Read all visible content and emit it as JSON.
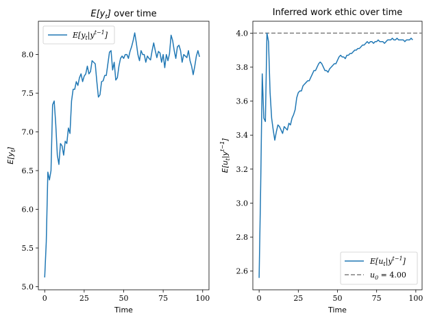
{
  "colors": {
    "series": "#1f77b4",
    "reference": "#7f7f7f",
    "frame": "#000000",
    "legend_border": "#cccccc"
  },
  "chart_data": [
    {
      "type": "line",
      "title": "E[y_t] over time",
      "xlabel": "Time",
      "ylabel": "E[y_t]",
      "xlim": [
        -4,
        104
      ],
      "ylim": [
        4.96,
        8.43
      ],
      "xticks": [
        0,
        25,
        50,
        75,
        100
      ],
      "yticks": [
        5.0,
        5.5,
        6.0,
        6.5,
        7.0,
        7.5,
        8.0
      ],
      "ytick_labels": [
        "5.0",
        "5.5",
        "6.0",
        "6.5",
        "7.0",
        "7.5",
        "8.0"
      ],
      "grid": false,
      "legend_position": "top-left",
      "series": [
        {
          "name": "E[y_t | y^{t-1}]",
          "x": [
            0,
            1,
            2,
            3,
            4,
            5,
            6,
            7,
            8,
            9,
            10,
            11,
            12,
            13,
            14,
            15,
            16,
            17,
            18,
            19,
            20,
            21,
            22,
            23,
            24,
            25,
            26,
            27,
            28,
            29,
            30,
            31,
            32,
            33,
            34,
            35,
            36,
            37,
            38,
            39,
            40,
            41,
            42,
            43,
            44,
            45,
            46,
            47,
            48,
            49,
            50,
            51,
            52,
            53,
            54,
            55,
            56,
            57,
            58,
            59,
            60,
            61,
            62,
            63,
            64,
            65,
            66,
            67,
            68,
            69,
            70,
            71,
            72,
            73,
            74,
            75,
            76,
            77,
            78,
            79,
            80,
            81,
            82,
            83,
            84,
            85,
            86,
            87,
            88,
            89,
            90,
            91,
            92,
            93,
            94,
            95,
            96,
            97,
            98
          ],
          "y": [
            5.12,
            5.58,
            6.48,
            6.38,
            6.5,
            7.35,
            7.4,
            7.1,
            6.7,
            6.58,
            6.85,
            6.82,
            6.7,
            6.88,
            6.85,
            7.05,
            6.98,
            7.4,
            7.55,
            7.55,
            7.65,
            7.6,
            7.7,
            7.75,
            7.65,
            7.72,
            7.75,
            7.85,
            7.75,
            7.78,
            7.92,
            7.9,
            7.88,
            7.65,
            7.45,
            7.48,
            7.65,
            7.66,
            7.73,
            7.73,
            7.88,
            8.03,
            8.05,
            7.8,
            7.9,
            7.67,
            7.7,
            7.85,
            7.95,
            7.98,
            7.95,
            8.0,
            8.0,
            7.95,
            8.04,
            8.1,
            8.18,
            8.28,
            8.15,
            8.0,
            7.92,
            8.05,
            8.0,
            8.0,
            7.9,
            7.98,
            7.95,
            7.93,
            8.05,
            8.15,
            8.05,
            7.96,
            8.04,
            8.02,
            7.9,
            8.0,
            7.83,
            8.0,
            7.92,
            8.01,
            8.25,
            8.18,
            8.05,
            7.95,
            8.1,
            8.12,
            8.05,
            7.9,
            8.0,
            7.98,
            7.96,
            8.05,
            7.92,
            7.85,
            7.74,
            7.85,
            7.98,
            8.05,
            7.97
          ]
        }
      ]
    },
    {
      "type": "line",
      "title": "Inferred work ethic over time",
      "xlabel": "Time",
      "ylabel": "E[u_t | y^{t-1}]",
      "xlim": [
        -4,
        104
      ],
      "ylim": [
        2.49,
        4.07
      ],
      "xticks": [
        0,
        25,
        50,
        75,
        100
      ],
      "yticks": [
        2.6,
        2.8,
        3.0,
        3.2,
        3.4,
        3.6,
        3.8,
        4.0
      ],
      "ytick_labels": [
        "2.6",
        "2.8",
        "3.0",
        "3.2",
        "3.4",
        "3.6",
        "3.8",
        "4.0"
      ],
      "grid": false,
      "legend_position": "bottom-right",
      "reference_line": {
        "name": "u_0 = 4.00",
        "y": 4.0,
        "style": "dashed"
      },
      "series": [
        {
          "name": "E[u_t | y^{t-1}]",
          "x": [
            0,
            1,
            2,
            3,
            4,
            5,
            6,
            7,
            8,
            9,
            10,
            11,
            12,
            13,
            14,
            15,
            16,
            17,
            18,
            19,
            20,
            21,
            22,
            23,
            24,
            25,
            26,
            27,
            28,
            29,
            30,
            31,
            32,
            33,
            34,
            35,
            36,
            37,
            38,
            39,
            40,
            41,
            42,
            43,
            44,
            45,
            46,
            47,
            48,
            49,
            50,
            51,
            52,
            53,
            54,
            55,
            56,
            57,
            58,
            59,
            60,
            61,
            62,
            63,
            64,
            65,
            66,
            67,
            68,
            69,
            70,
            71,
            72,
            73,
            74,
            75,
            76,
            77,
            78,
            79,
            80,
            81,
            82,
            83,
            84,
            85,
            86,
            87,
            88,
            89,
            90,
            91,
            92,
            93,
            94,
            95,
            96,
            97,
            98
          ],
          "y": [
            2.56,
            3.1,
            3.76,
            3.5,
            3.48,
            4.0,
            3.95,
            3.65,
            3.5,
            3.43,
            3.37,
            3.42,
            3.46,
            3.45,
            3.43,
            3.41,
            3.45,
            3.44,
            3.43,
            3.47,
            3.46,
            3.5,
            3.52,
            3.55,
            3.62,
            3.65,
            3.66,
            3.66,
            3.69,
            3.7,
            3.71,
            3.72,
            3.72,
            3.74,
            3.76,
            3.78,
            3.78,
            3.8,
            3.82,
            3.83,
            3.82,
            3.8,
            3.78,
            3.78,
            3.77,
            3.79,
            3.8,
            3.81,
            3.82,
            3.82,
            3.84,
            3.86,
            3.87,
            3.86,
            3.86,
            3.85,
            3.87,
            3.87,
            3.88,
            3.88,
            3.89,
            3.9,
            3.9,
            3.91,
            3.91,
            3.92,
            3.93,
            3.93,
            3.94,
            3.95,
            3.94,
            3.95,
            3.95,
            3.94,
            3.95,
            3.95,
            3.96,
            3.95,
            3.95,
            3.95,
            3.94,
            3.95,
            3.96,
            3.96,
            3.96,
            3.97,
            3.96,
            3.96,
            3.97,
            3.96,
            3.96,
            3.96,
            3.96,
            3.95,
            3.96,
            3.96,
            3.96,
            3.97,
            3.96
          ]
        }
      ]
    }
  ]
}
